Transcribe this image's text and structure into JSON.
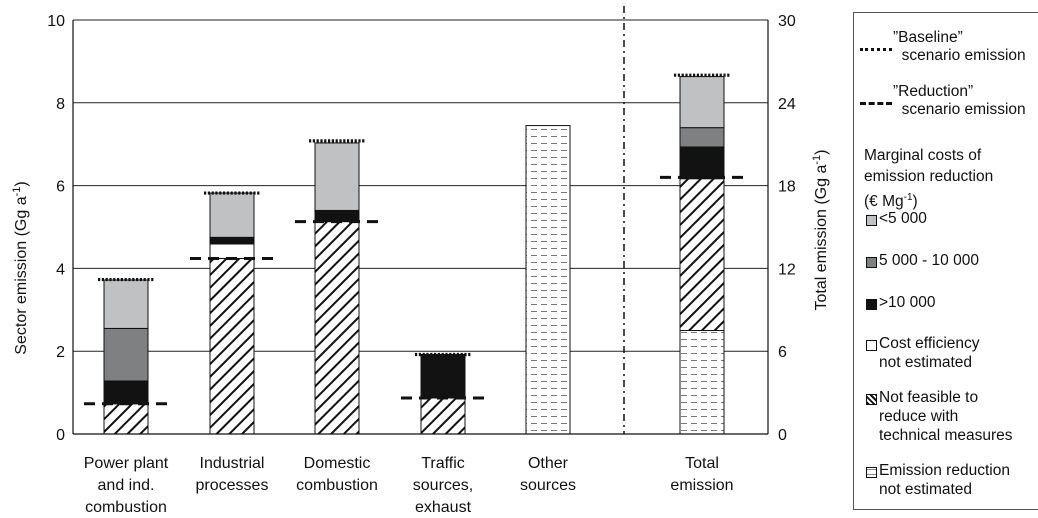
{
  "chart_data": {
    "type": "bar",
    "stacked": true,
    "left_axis": {
      "label": "Sector emission (Gg a⁻¹)",
      "range": [
        0,
        10
      ],
      "ticks": [
        "0",
        "2",
        "4",
        "6",
        "8",
        "10"
      ]
    },
    "right_axis": {
      "label": "Total emission (Gg a⁻¹)",
      "range": [
        0,
        30
      ],
      "ticks": [
        "0",
        "6",
        "12",
        "18",
        "24",
        "30"
      ]
    },
    "grid": true,
    "legend_position": "right",
    "categories": [
      {
        "lines": [
          "Power plant",
          "and ind.",
          "combustion"
        ]
      },
      {
        "lines": [
          "Industrial",
          "processes"
        ]
      },
      {
        "lines": [
          "Domestic",
          "combustion"
        ]
      },
      {
        "lines": [
          "Traffic",
          "sources,",
          "exhaust"
        ]
      },
      {
        "lines": [
          "Other",
          "sources"
        ]
      },
      {
        "lines": [
          "Total",
          "emission"
        ]
      }
    ],
    "series": [
      {
        "key": "not_feasible",
        "name": "Not feasible to\nreduce with\ntechnical measures",
        "pattern": "hatch",
        "values": [
          0.73,
          4.24,
          5.13,
          0.87,
          0,
          3.8
        ]
      },
      {
        "key": "high",
        "name": ">10 000",
        "pattern": "black",
        "values": [
          0.55,
          0,
          0,
          1.05,
          0,
          0.7
        ]
      },
      {
        "key": "mid",
        "name": "5 000 - 10 000",
        "pattern": "darkgray",
        "values": [
          1.27,
          0,
          0,
          0,
          0,
          0.5
        ]
      },
      {
        "key": "low",
        "name": "<5 000",
        "pattern": "lightgray",
        "values": [
          1.17,
          1.07,
          1.63,
          0,
          0,
          1.25
        ]
      },
      {
        "key": "not_estimated_cost",
        "name": "Cost efficiency\nnot estimated",
        "pattern": "white",
        "values": [
          0,
          0.35,
          0,
          0,
          0,
          0
        ]
      },
      {
        "key": "black2",
        "name": ">10 000",
        "pattern": "black",
        "values": [
          0,
          0.16,
          0.27,
          0,
          0,
          0
        ]
      },
      {
        "key": "not_estimated_red",
        "name": "Emission reduction\nnot estimated",
        "pattern": "dashfill",
        "values": [
          0,
          0,
          0,
          0,
          7.45,
          2.5
        ]
      }
    ],
    "stack_order": [
      [
        "not_feasible",
        "high",
        "mid",
        "low"
      ],
      [
        "not_feasible",
        "not_estimated_cost",
        "black2",
        "low"
      ],
      [
        "not_feasible",
        "black2",
        "low"
      ],
      [
        "not_feasible",
        "high"
      ],
      [
        "not_estimated_red"
      ],
      [
        "not_estimated_red",
        "not_feasible",
        "mid_total_black",
        "mid_total_gray",
        "low"
      ]
    ],
    "total_bar": {
      "scale": "right",
      "segments": [
        {
          "pattern": "dashfill",
          "value": 7.5
        },
        {
          "pattern": "hatch",
          "value": 11.0
        },
        {
          "pattern": "black",
          "value": 2.3
        },
        {
          "pattern": "darkgray",
          "value": 1.4
        },
        {
          "pattern": "lightgray",
          "value": 3.7
        }
      ]
    },
    "sector_bars": [
      [
        {
          "pattern": "hatch",
          "value": 0.73
        },
        {
          "pattern": "black",
          "value": 0.55
        },
        {
          "pattern": "darkgray",
          "value": 1.27
        },
        {
          "pattern": "lightgray",
          "value": 1.17
        }
      ],
      [
        {
          "pattern": "hatch",
          "value": 4.24
        },
        {
          "pattern": "white",
          "value": 0.35
        },
        {
          "pattern": "black",
          "value": 0.16
        },
        {
          "pattern": "lightgray",
          "value": 1.07
        }
      ],
      [
        {
          "pattern": "hatch",
          "value": 5.13
        },
        {
          "pattern": "black",
          "value": 0.27
        },
        {
          "pattern": "lightgray",
          "value": 1.63
        }
      ],
      [
        {
          "pattern": "hatch",
          "value": 0.87
        },
        {
          "pattern": "black",
          "value": 1.05
        }
      ],
      [
        {
          "pattern": "dashfill",
          "value": 7.45
        }
      ]
    ],
    "baseline": [
      3.73,
      5.82,
      7.08,
      1.92,
      null,
      26.0
    ],
    "reduction": [
      0.73,
      4.24,
      5.13,
      0.87,
      null,
      18.6
    ]
  },
  "legend": {
    "baseline_label": "”Baseline”\n  scenario emission",
    "reduction_label": "”Reduction”\n  scenario emission",
    "heading_lines": [
      "Marginal costs of",
      "emission reduction",
      "(€ Mg⁻¹)"
    ],
    "items": [
      {
        "pattern": "lightgray",
        "label": "<5 000"
      },
      {
        "pattern": "darkgray",
        "label": "5 000 - 10 000"
      },
      {
        "pattern": "black",
        "label": ">10 000"
      },
      {
        "pattern": "white",
        "label": "Cost efficiency\nnot estimated"
      },
      {
        "pattern": "hatch",
        "label": "Not feasible to\nreduce with\ntechnical measures"
      },
      {
        "pattern": "dashfill",
        "label": "Emission reduction\nnot estimated"
      }
    ]
  },
  "colors": {
    "lightgray": "#c0c1c3",
    "darkgray": "#7e8082",
    "black": "#121212",
    "white": "#ffffff",
    "grid": "#222222"
  }
}
